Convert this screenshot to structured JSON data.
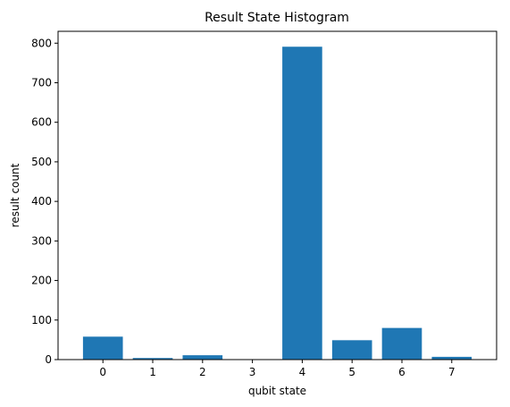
{
  "chart_data": {
    "type": "bar",
    "title": "Result State Histogram",
    "xlabel": "qubit state",
    "ylabel": "result count",
    "categories": [
      "0",
      "1",
      "2",
      "3",
      "4",
      "5",
      "6",
      "7"
    ],
    "values": [
      58,
      4,
      11,
      0,
      791,
      49,
      80,
      7
    ],
    "ylim": [
      0,
      830
    ],
    "yticks": [
      0,
      100,
      200,
      300,
      400,
      500,
      600,
      700,
      800
    ],
    "bar_color": "#1f77b4",
    "grid": false
  }
}
